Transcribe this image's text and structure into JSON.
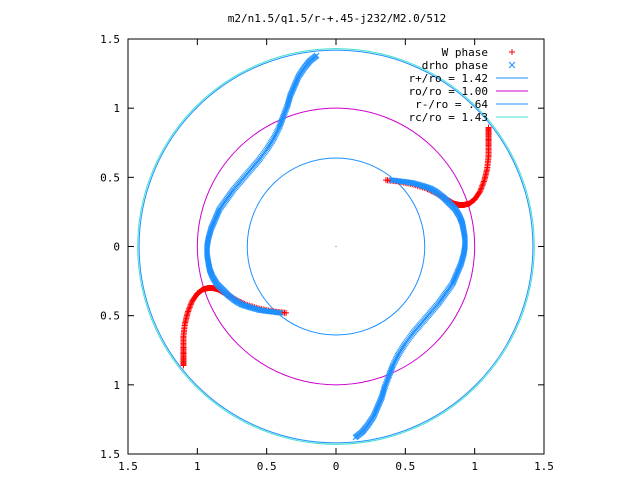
{
  "chart_data": {
    "type": "scatter",
    "title": "m2/n1.5/q1.5/r-+.45-j232/M2.0/512",
    "xlabel": "",
    "ylabel": "",
    "xlim": [
      -1.5,
      1.5
    ],
    "ylim": [
      -1.5,
      1.5
    ],
    "x_tick_labels": [
      "1.5",
      "1",
      "0.5",
      "0",
      "0.5",
      "1",
      "1.5"
    ],
    "y_tick_labels": [
      "1.5",
      "1",
      "0.5",
      "0",
      "0.5",
      "1",
      "1.5"
    ],
    "grid": false,
    "legend_position": "top-right",
    "series": [
      {
        "name": "W phase",
        "kind": "points",
        "marker": "plus",
        "color": "#ff0000",
        "arms": [
          [
            [
              0.36,
              0.48
            ],
            [
              0.45,
              0.47
            ],
            [
              0.55,
              0.45
            ],
            [
              0.65,
              0.42
            ],
            [
              0.73,
              0.38
            ],
            [
              0.8,
              0.34
            ],
            [
              0.85,
              0.31
            ],
            [
              0.89,
              0.3
            ],
            [
              0.92,
              0.3
            ],
            [
              0.96,
              0.31
            ],
            [
              1.0,
              0.34
            ],
            [
              1.04,
              0.4
            ],
            [
              1.07,
              0.48
            ],
            [
              1.09,
              0.56
            ],
            [
              1.1,
              0.65
            ],
            [
              1.1,
              0.73
            ],
            [
              1.1,
              0.8
            ],
            [
              1.1,
              0.86
            ]
          ],
          [
            [
              -0.36,
              -0.48
            ],
            [
              -0.45,
              -0.47
            ],
            [
              -0.55,
              -0.45
            ],
            [
              -0.65,
              -0.42
            ],
            [
              -0.73,
              -0.38
            ],
            [
              -0.8,
              -0.34
            ],
            [
              -0.85,
              -0.31
            ],
            [
              -0.89,
              -0.3
            ],
            [
              -0.92,
              -0.3
            ],
            [
              -0.96,
              -0.31
            ],
            [
              -1.0,
              -0.34
            ],
            [
              -1.04,
              -0.4
            ],
            [
              -1.07,
              -0.48
            ],
            [
              -1.09,
              -0.56
            ],
            [
              -1.1,
              -0.65
            ],
            [
              -1.1,
              -0.73
            ],
            [
              -1.1,
              -0.8
            ],
            [
              -1.1,
              -0.86
            ]
          ]
        ]
      },
      {
        "name": "drho phase",
        "kind": "points",
        "marker": "cross",
        "color": "#1e90ff",
        "arms": [
          [
            [
              0.4,
              0.48
            ],
            [
              0.48,
              0.47
            ],
            [
              0.55,
              0.46
            ],
            [
              0.62,
              0.44
            ],
            [
              0.68,
              0.42
            ],
            [
              0.73,
              0.39
            ],
            [
              0.78,
              0.35
            ],
            [
              0.82,
              0.31
            ],
            [
              0.86,
              0.27
            ],
            [
              0.89,
              0.22
            ],
            [
              0.91,
              0.17
            ],
            [
              0.92,
              0.12
            ],
            [
              0.93,
              0.06
            ],
            [
              0.93,
              0.0
            ],
            [
              0.92,
              -0.06
            ],
            [
              0.9,
              -0.13
            ],
            [
              0.87,
              -0.2
            ],
            [
              0.84,
              -0.27
            ],
            [
              0.79,
              -0.34
            ],
            [
              0.74,
              -0.41
            ],
            [
              0.68,
              -0.48
            ],
            [
              0.62,
              -0.55
            ],
            [
              0.56,
              -0.62
            ],
            [
              0.5,
              -0.7
            ],
            [
              0.45,
              -0.78
            ],
            [
              0.41,
              -0.86
            ],
            [
              0.38,
              -0.94
            ],
            [
              0.35,
              -1.02
            ],
            [
              0.33,
              -1.09
            ],
            [
              0.3,
              -1.16
            ],
            [
              0.27,
              -1.23
            ],
            [
              0.23,
              -1.29
            ],
            [
              0.19,
              -1.34
            ],
            [
              0.14,
              -1.38
            ]
          ],
          [
            [
              -0.4,
              -0.48
            ],
            [
              -0.48,
              -0.47
            ],
            [
              -0.55,
              -0.46
            ],
            [
              -0.62,
              -0.44
            ],
            [
              -0.68,
              -0.42
            ],
            [
              -0.73,
              -0.39
            ],
            [
              -0.78,
              -0.35
            ],
            [
              -0.82,
              -0.31
            ],
            [
              -0.86,
              -0.27
            ],
            [
              -0.89,
              -0.22
            ],
            [
              -0.91,
              -0.17
            ],
            [
              -0.92,
              -0.12
            ],
            [
              -0.93,
              -0.06
            ],
            [
              -0.93,
              0.0
            ],
            [
              -0.92,
              0.06
            ],
            [
              -0.9,
              0.13
            ],
            [
              -0.87,
              0.2
            ],
            [
              -0.84,
              0.27
            ],
            [
              -0.79,
              0.34
            ],
            [
              -0.74,
              0.41
            ],
            [
              -0.68,
              0.48
            ],
            [
              -0.62,
              0.55
            ],
            [
              -0.56,
              0.62
            ],
            [
              -0.5,
              0.7
            ],
            [
              -0.45,
              0.78
            ],
            [
              -0.41,
              0.86
            ],
            [
              -0.38,
              0.94
            ],
            [
              -0.35,
              1.02
            ],
            [
              -0.33,
              1.09
            ],
            [
              -0.3,
              1.16
            ],
            [
              -0.27,
              1.23
            ],
            [
              -0.23,
              1.29
            ],
            [
              -0.19,
              1.34
            ],
            [
              -0.14,
              1.38
            ]
          ]
        ]
      },
      {
        "name": "r+/ro = 1.42",
        "kind": "circle",
        "radius": 1.42,
        "color": "#1e90ff"
      },
      {
        "name": "ro/ro = 1.00",
        "kind": "circle",
        "radius": 1.0,
        "color": "#cc00cc"
      },
      {
        "name": "r-/ro = .64",
        "kind": "circle",
        "radius": 0.64,
        "color": "#1e90ff"
      },
      {
        "name": "rc/ro = 1.43",
        "kind": "circle",
        "radius": 1.43,
        "color": "#40e0d0"
      }
    ]
  }
}
